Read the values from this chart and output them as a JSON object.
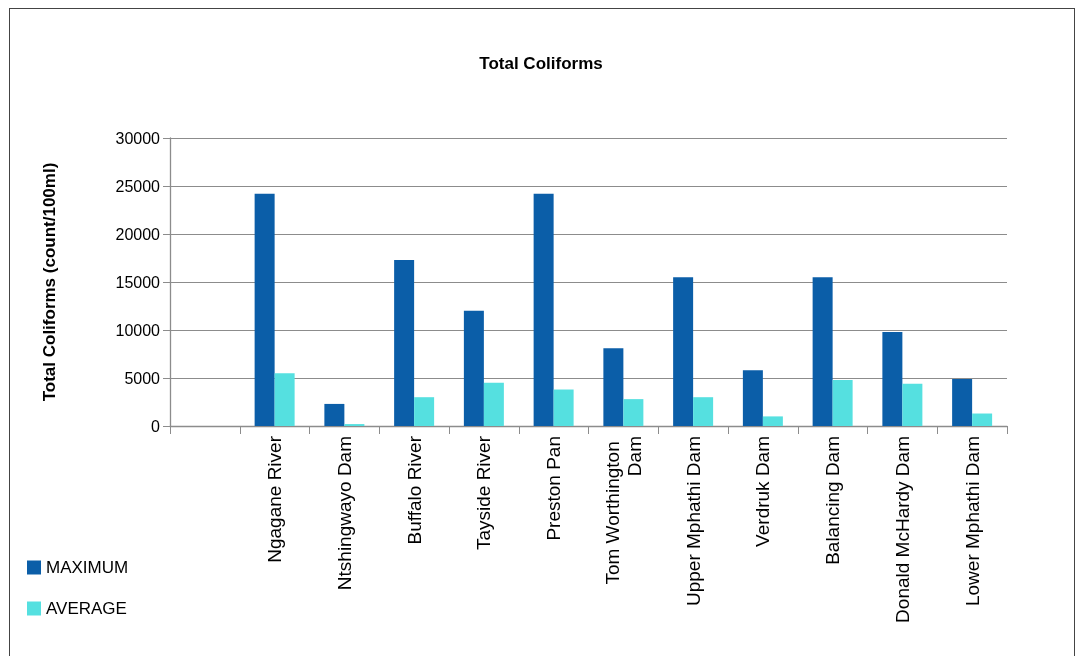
{
  "chart_data": {
    "type": "bar",
    "title": "Total Coliforms",
    "ylabel": "Total Coliforms (count/100ml)",
    "categories": [
      null,
      "Ngagane River",
      "Ntshingwayo Dam",
      "Buffalo River",
      "Tayside River",
      "Preston Pan",
      "Tom Worthington Dam",
      "Upper Mphathi Dam",
      "Verdruk Dam",
      "Balancing Dam",
      "Donald McHardy Dam",
      "Lower Mphathi Dam"
    ],
    "series": [
      {
        "name": "MAXIMUM",
        "color": "#0b5ea8",
        "values": [
          null,
          24200,
          2300,
          17300,
          12000,
          24200,
          8100,
          15500,
          5800,
          15500,
          9800,
          4900
        ]
      },
      {
        "name": "AVERAGE",
        "color": "#55e0e0",
        "values": [
          null,
          5500,
          200,
          3000,
          4500,
          3800,
          2800,
          3000,
          1000,
          4800,
          4400,
          1300
        ]
      }
    ],
    "ylim": [
      0,
      30000
    ],
    "yticks": [
      0,
      5000,
      10000,
      15000,
      20000,
      25000,
      30000
    ],
    "grid": "y",
    "legend": "bottom left"
  }
}
